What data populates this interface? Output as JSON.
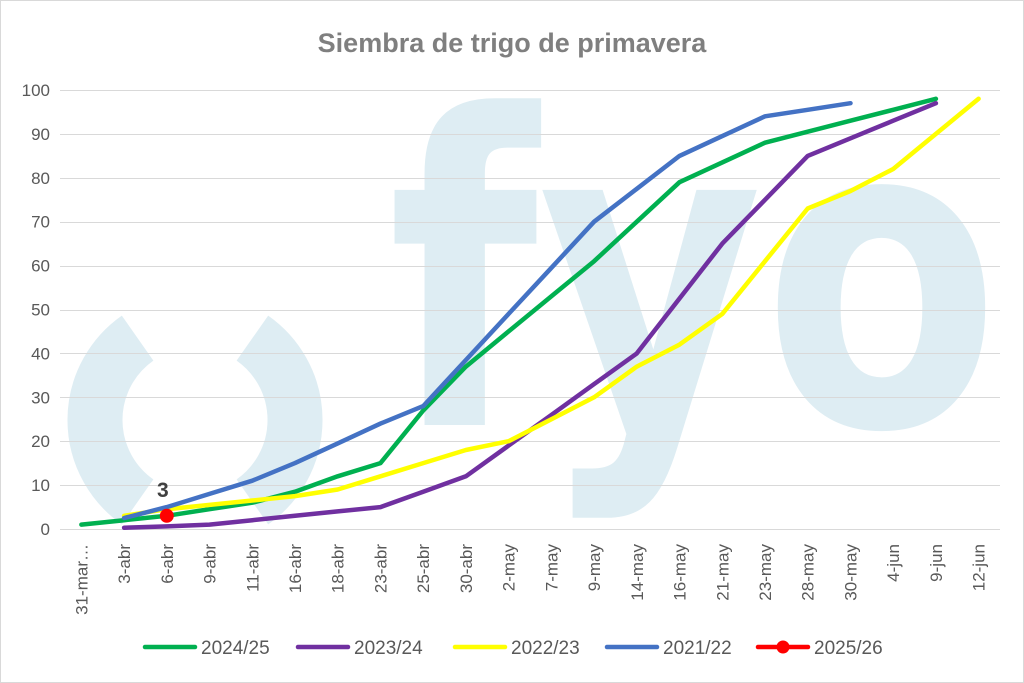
{
  "chart_data": {
    "type": "line",
    "title": "Siembra de trigo de primavera",
    "categories": [
      "31-mar…",
      "3-abr",
      "6-abr",
      "9-abr",
      "11-abr",
      "16-abr",
      "18-abr",
      "23-abr",
      "25-abr",
      "30-abr",
      "2-may",
      "7-may",
      "9-may",
      "14-may",
      "16-may",
      "21-may",
      "23-may",
      "28-may",
      "30-may",
      "4-jun",
      "9-jun",
      "12-jun"
    ],
    "yticks": [
      0,
      10,
      20,
      30,
      40,
      50,
      60,
      70,
      80,
      90,
      100
    ],
    "ylim": [
      0,
      100
    ],
    "grid": true,
    "legend_position": "bottom",
    "series": [
      {
        "name": "2024/25",
        "color": "#00B050",
        "values": [
          1,
          2,
          3,
          4.5,
          6,
          8.5,
          12,
          15,
          27,
          37,
          45,
          53,
          61,
          70,
          79,
          83.5,
          88,
          90.5,
          93,
          95.5,
          98,
          null
        ]
      },
      {
        "name": "2023/24",
        "color": "#7030A0",
        "values": [
          null,
          0.3,
          0.6,
          1,
          2,
          3,
          4,
          5,
          8.5,
          12,
          19,
          26,
          33,
          40,
          52.5,
          65,
          75,
          85,
          89,
          93,
          97,
          null
        ]
      },
      {
        "name": "2022/23",
        "color": "#FFFF00",
        "values": [
          null,
          3,
          4.5,
          5.5,
          6.5,
          7.5,
          9,
          12,
          15,
          18,
          20,
          25,
          30,
          37,
          42,
          49,
          61,
          73,
          77,
          82,
          90,
          98
        ]
      },
      {
        "name": "2021/22",
        "color": "#4472C4",
        "values": [
          null,
          2.5,
          5,
          8,
          11,
          15,
          19.5,
          24,
          28,
          38.5,
          49,
          59.5,
          70,
          77.5,
          85,
          89.5,
          94,
          95.5,
          97,
          null,
          null,
          null
        ]
      },
      {
        "name": "2025/26",
        "color": "#FF0000",
        "marker": true,
        "data_label": "3",
        "values": [
          null,
          null,
          3,
          null,
          null,
          null,
          null,
          null,
          null,
          null,
          null,
          null,
          null,
          null,
          null,
          null,
          null,
          null,
          null,
          null,
          null,
          null
        ]
      }
    ]
  },
  "watermark": {
    "text": "fyo",
    "color": "#DEEDF3"
  }
}
